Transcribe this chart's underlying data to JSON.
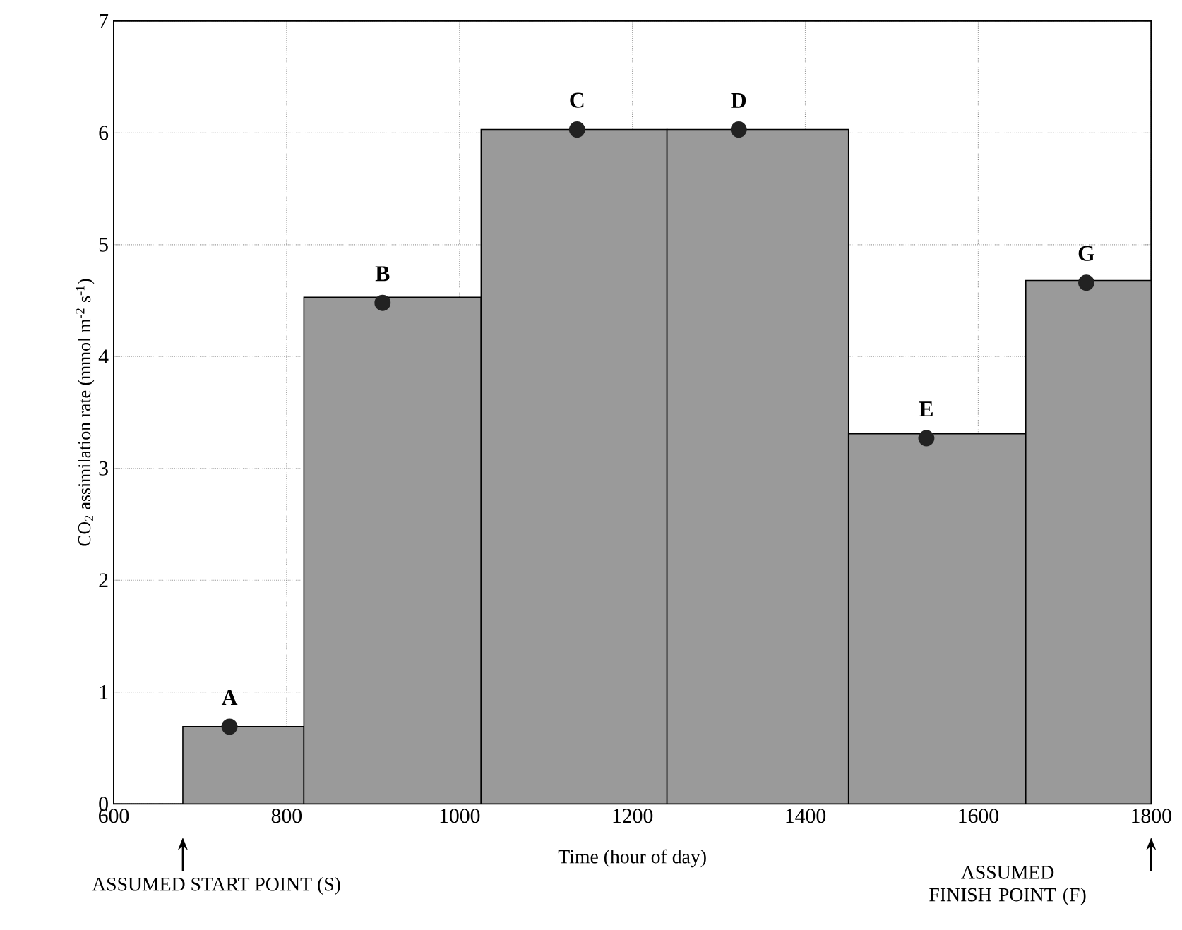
{
  "chart_data": {
    "type": "histogram",
    "xlabel": "Time (hour of day)",
    "ylabel": "CO$_{2}$ assimilation rate (mmol m$^{-2}$ s$^{-1}$)",
    "xlim": [
      600,
      1800
    ],
    "ylim": [
      0,
      7
    ],
    "xticks": [
      600,
      800,
      1000,
      1200,
      1400,
      1600,
      1800
    ],
    "yticks": [
      0,
      1,
      2,
      3,
      4,
      5,
      6,
      7
    ],
    "grid": true,
    "series": [
      {
        "bins": [
          680,
          820,
          1025,
          1240,
          1450,
          1655,
          1800
        ],
        "values": [
          0.69,
          4.53,
          6.03,
          6.03,
          3.31,
          4.68
        ],
        "color": "#9a9a9a"
      },
      {
        "type": "scatter",
        "x": [
          734,
          911,
          1136,
          1323,
          1540,
          1725
        ],
        "values": [
          0.69,
          4.48,
          6.03,
          6.03,
          3.27,
          4.66
        ],
        "color": "#222222",
        "marker": "circle"
      }
    ],
    "annotations": [
      {
        "text": "A",
        "x": 734,
        "y": 0.69
      },
      {
        "text": "B",
        "x": 911,
        "y": 4.48
      },
      {
        "text": "C",
        "x": 1136,
        "y": 6.03
      },
      {
        "text": "D",
        "x": 1323,
        "y": 6.03
      },
      {
        "text": "E",
        "x": 1540,
        "y": 3.27
      },
      {
        "text": "G",
        "x": 1725,
        "y": 4.66
      },
      "ASSUMED START POINT (S)",
      "ASSUMED FINISH POINT (F)"
    ]
  }
}
